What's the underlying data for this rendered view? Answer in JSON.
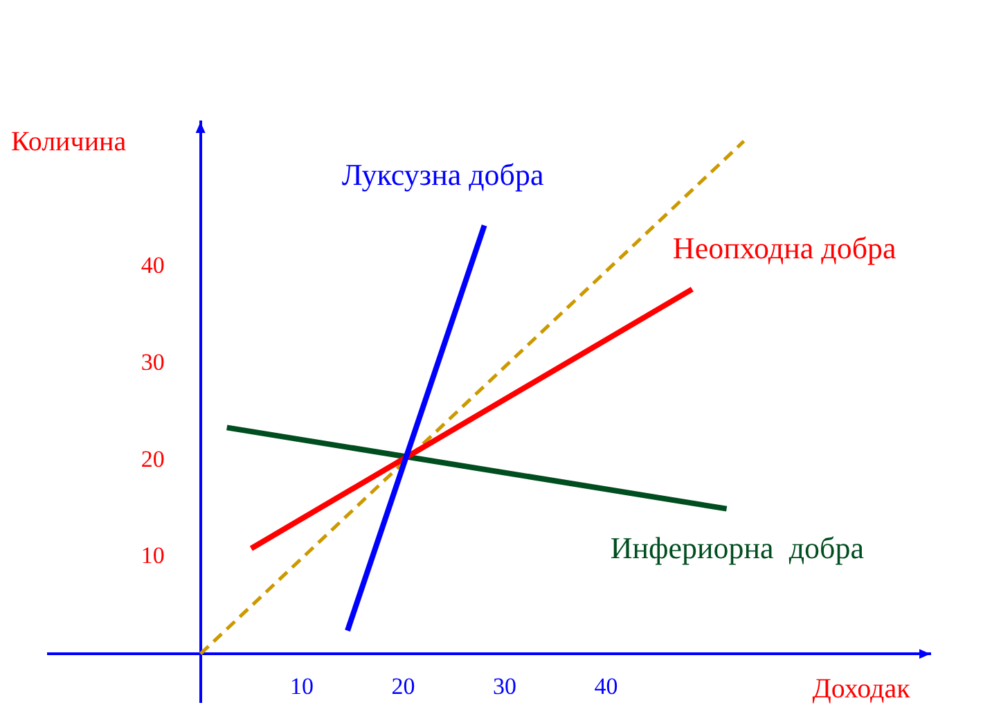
{
  "chart_data": {
    "type": "line",
    "xlabel": "Доходак",
    "ylabel": "Количина",
    "xlim": [
      -15,
      72
    ],
    "ylim": [
      -5,
      55
    ],
    "xticks": [
      10,
      20,
      30,
      40
    ],
    "yticks": [
      10,
      20,
      30,
      40
    ],
    "grid": false,
    "legend": false,
    "marker": "none",
    "series": [
      {
        "name": "Луксузна добра",
        "color": "#0000ff",
        "x": [
          14.5,
          28
        ],
        "values": [
          2.4,
          44.3
        ]
      },
      {
        "name": "Неопходна добра",
        "color": "#ff0000",
        "x": [
          5,
          48.5
        ],
        "values": [
          10.9,
          37.7
        ]
      },
      {
        "name": "Инфериорна  добра",
        "color": "#004d1f",
        "x": [
          2.6,
          51.9
        ],
        "values": [
          23.4,
          15
        ]
      },
      {
        "color": "#cc9900",
        "x": [
          0,
          53.6
        ],
        "values": [
          0,
          53
        ],
        "line_style": "dashed"
      }
    ]
  }
}
